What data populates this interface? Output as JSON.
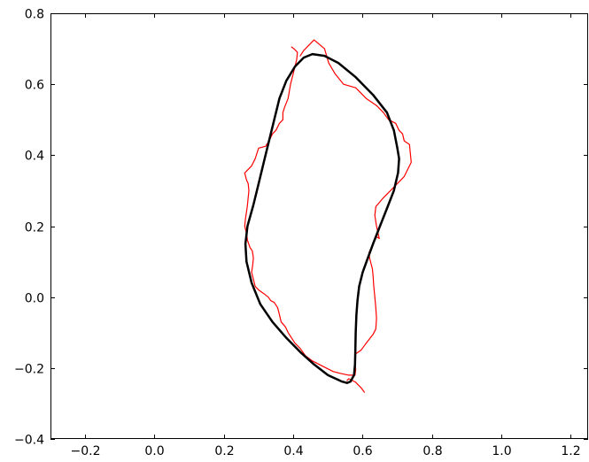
{
  "chart_data": {
    "type": "line",
    "title": "",
    "xlabel": "",
    "ylabel": "",
    "xlim": [
      -0.3,
      1.25
    ],
    "ylim": [
      -0.4,
      0.8
    ],
    "xticks": [
      -0.2,
      0.0,
      0.2,
      0.4,
      0.6,
      0.8,
      1.0,
      1.2
    ],
    "xtick_labels": [
      "−0.2",
      "0.0",
      "0.2",
      "0.4",
      "0.6",
      "0.8",
      "1.0",
      "1.2"
    ],
    "yticks": [
      -0.4,
      -0.2,
      0.0,
      0.2,
      0.4,
      0.6,
      0.8
    ],
    "ytick_labels": [
      "−0.4",
      "−0.2",
      "0.0",
      "0.2",
      "0.4",
      "0.6",
      "0.8"
    ],
    "grid": false,
    "legend": "none",
    "series": [
      {
        "color": "#ff0000",
        "linewidth": 1.2,
        "points": [
          [
            0.395,
            0.705
          ],
          [
            0.402,
            0.7
          ],
          [
            0.412,
            0.69
          ],
          [
            0.41,
            0.67
          ],
          [
            0.4,
            0.63
          ],
          [
            0.392,
            0.6
          ],
          [
            0.385,
            0.56
          ],
          [
            0.375,
            0.535
          ],
          [
            0.37,
            0.52
          ],
          [
            0.37,
            0.5
          ],
          [
            0.36,
            0.49
          ],
          [
            0.35,
            0.47
          ],
          [
            0.34,
            0.46
          ],
          [
            0.33,
            0.44
          ],
          [
            0.32,
            0.425
          ],
          [
            0.3,
            0.42
          ],
          [
            0.29,
            0.39
          ],
          [
            0.28,
            0.37
          ],
          [
            0.26,
            0.35
          ],
          [
            0.265,
            0.33
          ],
          [
            0.27,
            0.32
          ],
          [
            0.272,
            0.3
          ],
          [
            0.27,
            0.28
          ],
          [
            0.268,
            0.26
          ],
          [
            0.265,
            0.24
          ],
          [
            0.262,
            0.22
          ],
          [
            0.26,
            0.2
          ],
          [
            0.265,
            0.18
          ],
          [
            0.268,
            0.16
          ],
          [
            0.275,
            0.14
          ],
          [
            0.282,
            0.13
          ],
          [
            0.285,
            0.11
          ],
          [
            0.283,
            0.09
          ],
          [
            0.28,
            0.07
          ],
          [
            0.285,
            0.05
          ],
          [
            0.29,
            0.03
          ],
          [
            0.3,
            0.02
          ],
          [
            0.315,
            0.01
          ],
          [
            0.328,
            0.0
          ],
          [
            0.335,
            -0.01
          ],
          [
            0.345,
            -0.015
          ],
          [
            0.355,
            -0.03
          ],
          [
            0.36,
            -0.05
          ],
          [
            0.365,
            -0.07
          ],
          [
            0.378,
            -0.085
          ],
          [
            0.385,
            -0.1
          ],
          [
            0.395,
            -0.115
          ],
          [
            0.405,
            -0.13
          ],
          [
            0.42,
            -0.145
          ],
          [
            0.435,
            -0.165
          ],
          [
            0.455,
            -0.18
          ],
          [
            0.475,
            -0.19
          ],
          [
            0.495,
            -0.2
          ],
          [
            0.515,
            -0.21
          ],
          [
            0.535,
            -0.215
          ],
          [
            0.56,
            -0.22
          ],
          [
            0.578,
            -0.22
          ],
          [
            0.58,
            -0.205
          ],
          [
            0.578,
            -0.185
          ],
          [
            0.58,
            -0.16
          ],
          [
            0.595,
            -0.15
          ],
          [
            0.61,
            -0.13
          ],
          [
            0.63,
            -0.105
          ],
          [
            0.638,
            -0.09
          ],
          [
            0.64,
            -0.06
          ],
          [
            0.638,
            -0.03
          ],
          [
            0.635,
            0.0
          ],
          [
            0.632,
            0.03
          ],
          [
            0.63,
            0.06
          ],
          [
            0.628,
            0.08
          ],
          [
            0.62,
            0.11
          ],
          [
            0.618,
            0.125
          ],
          [
            0.63,
            0.15
          ],
          [
            0.64,
            0.17
          ],
          [
            0.648,
            0.165
          ],
          [
            0.64,
            0.2
          ],
          [
            0.635,
            0.23
          ],
          [
            0.638,
            0.255
          ],
          [
            0.66,
            0.28
          ],
          [
            0.68,
            0.3
          ],
          [
            0.7,
            0.32
          ],
          [
            0.72,
            0.34
          ],
          [
            0.74,
            0.38
          ],
          [
            0.735,
            0.43
          ],
          [
            0.72,
            0.44
          ],
          [
            0.715,
            0.46
          ],
          [
            0.705,
            0.47
          ],
          [
            0.695,
            0.49
          ],
          [
            0.675,
            0.5
          ],
          [
            0.66,
            0.52
          ],
          [
            0.64,
            0.54
          ],
          [
            0.61,
            0.56
          ],
          [
            0.58,
            0.59
          ],
          [
            0.545,
            0.6
          ],
          [
            0.52,
            0.63
          ],
          [
            0.502,
            0.66
          ],
          [
            0.49,
            0.7
          ],
          [
            0.46,
            0.725
          ],
          [
            0.45,
            0.715
          ],
          [
            0.43,
            0.695
          ],
          [
            0.42,
            0.68
          ]
        ]
      },
      {
        "color": "#ff0000",
        "linewidth": 1.2,
        "points": [
          [
            0.555,
            -0.235
          ],
          [
            0.56,
            -0.23
          ],
          [
            0.58,
            -0.24
          ],
          [
            0.595,
            -0.255
          ],
          [
            0.605,
            -0.268
          ]
        ]
      },
      {
        "color": "#000000",
        "linewidth": 2.5,
        "points": [
          [
            0.455,
            0.685
          ],
          [
            0.49,
            0.68
          ],
          [
            0.53,
            0.66
          ],
          [
            0.58,
            0.62
          ],
          [
            0.63,
            0.57
          ],
          [
            0.67,
            0.52
          ],
          [
            0.69,
            0.47
          ],
          [
            0.7,
            0.42
          ],
          [
            0.705,
            0.39
          ],
          [
            0.702,
            0.35
          ],
          [
            0.69,
            0.3
          ],
          [
            0.67,
            0.25
          ],
          [
            0.65,
            0.2
          ],
          [
            0.63,
            0.15
          ],
          [
            0.615,
            0.11
          ],
          [
            0.6,
            0.07
          ],
          [
            0.59,
            0.03
          ],
          [
            0.585,
            -0.01
          ],
          [
            0.582,
            -0.05
          ],
          [
            0.58,
            -0.1
          ],
          [
            0.579,
            -0.15
          ],
          [
            0.578,
            -0.19
          ],
          [
            0.575,
            -0.22
          ],
          [
            0.565,
            -0.238
          ],
          [
            0.555,
            -0.242
          ],
          [
            0.54,
            -0.238
          ],
          [
            0.5,
            -0.22
          ],
          [
            0.46,
            -0.19
          ],
          [
            0.42,
            -0.155
          ],
          [
            0.38,
            -0.115
          ],
          [
            0.34,
            -0.07
          ],
          [
            0.305,
            -0.02
          ],
          [
            0.28,
            0.04
          ],
          [
            0.265,
            0.1
          ],
          [
            0.262,
            0.15
          ],
          [
            0.268,
            0.2
          ],
          [
            0.285,
            0.26
          ],
          [
            0.3,
            0.32
          ],
          [
            0.315,
            0.38
          ],
          [
            0.33,
            0.44
          ],
          [
            0.345,
            0.5
          ],
          [
            0.36,
            0.56
          ],
          [
            0.38,
            0.61
          ],
          [
            0.405,
            0.65
          ],
          [
            0.43,
            0.675
          ],
          [
            0.455,
            0.685
          ]
        ]
      }
    ]
  }
}
